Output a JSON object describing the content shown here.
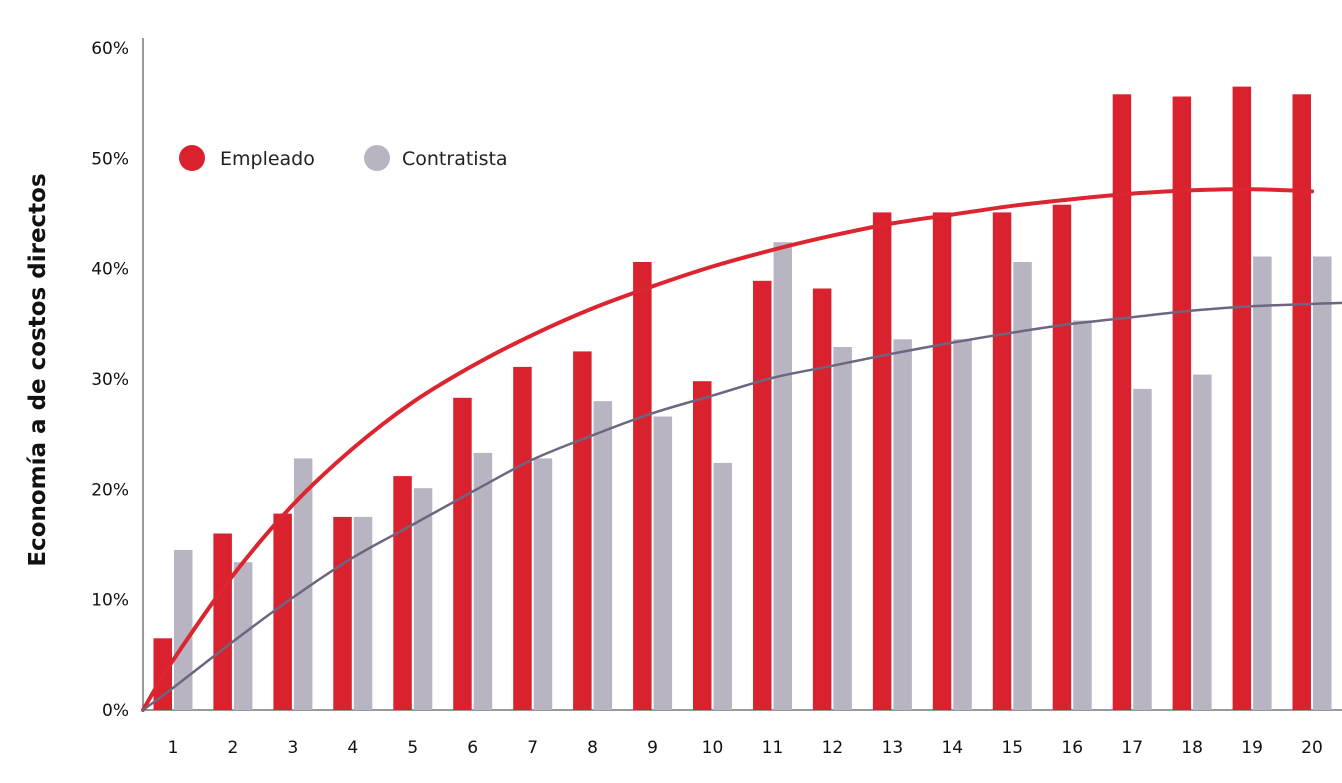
{
  "chart_data": {
    "type": "bar",
    "ylabel": "Economía a de costos directos",
    "xlabel": "",
    "categories": [
      "1",
      "2",
      "3",
      "4",
      "5",
      "6",
      "7",
      "8",
      "9",
      "10",
      "11",
      "12",
      "13",
      "14",
      "15",
      "16",
      "17",
      "18",
      "19",
      "20"
    ],
    "ylim": [
      0,
      60
    ],
    "yticks": [
      0,
      10,
      20,
      30,
      40,
      50,
      60
    ],
    "ytick_suffix": "%",
    "grid": false,
    "legend_position": "top-left",
    "series": [
      {
        "name": "Empleado",
        "color": "#d9222e",
        "values": [
          6.5,
          16,
          17.8,
          17.5,
          21.2,
          28.3,
          31.1,
          32.5,
          40.6,
          29.8,
          38.9,
          38.2,
          45.1,
          45.1,
          45.1,
          45.8,
          55.8,
          55.6,
          56.5,
          55.8
        ]
      },
      {
        "name": "Contratista",
        "color": "#b8b4c2",
        "values": [
          14.5,
          13.4,
          22.8,
          17.5,
          20.1,
          23.3,
          22.8,
          28,
          26.6,
          22.4,
          42.4,
          32.9,
          33.6,
          33.6,
          40.6,
          35.3,
          29.1,
          30.4,
          41.1,
          41.1
        ]
      }
    ],
    "trendlines": [
      {
        "series": "Empleado",
        "color": "#dc2530",
        "x": [
          0.5,
          1,
          2,
          3,
          4,
          5,
          6,
          7,
          8,
          9,
          10,
          11,
          12,
          13,
          14,
          15,
          16,
          17,
          18,
          19,
          20
        ],
        "y": [
          0,
          4.5,
          12.2,
          18.6,
          23.7,
          27.9,
          31.2,
          34,
          36.4,
          38.4,
          40.2,
          41.7,
          43,
          44.1,
          44.9,
          45.7,
          46.3,
          46.8,
          47.1,
          47.2,
          47
        ]
      },
      {
        "series": "Contratista",
        "color": "#6e6680",
        "x": [
          0.5,
          1,
          2,
          3,
          4,
          5,
          6,
          7,
          8,
          9,
          10,
          11,
          12,
          13,
          14,
          15,
          16,
          17,
          18,
          19,
          20.5
        ],
        "y": [
          0,
          2,
          6.2,
          10.2,
          13.8,
          16.8,
          19.8,
          22.7,
          24.9,
          26.9,
          28.5,
          30.1,
          31.2,
          32.3,
          33.3,
          34.2,
          35,
          35.6,
          36.2,
          36.6,
          36.9
        ]
      }
    ]
  }
}
